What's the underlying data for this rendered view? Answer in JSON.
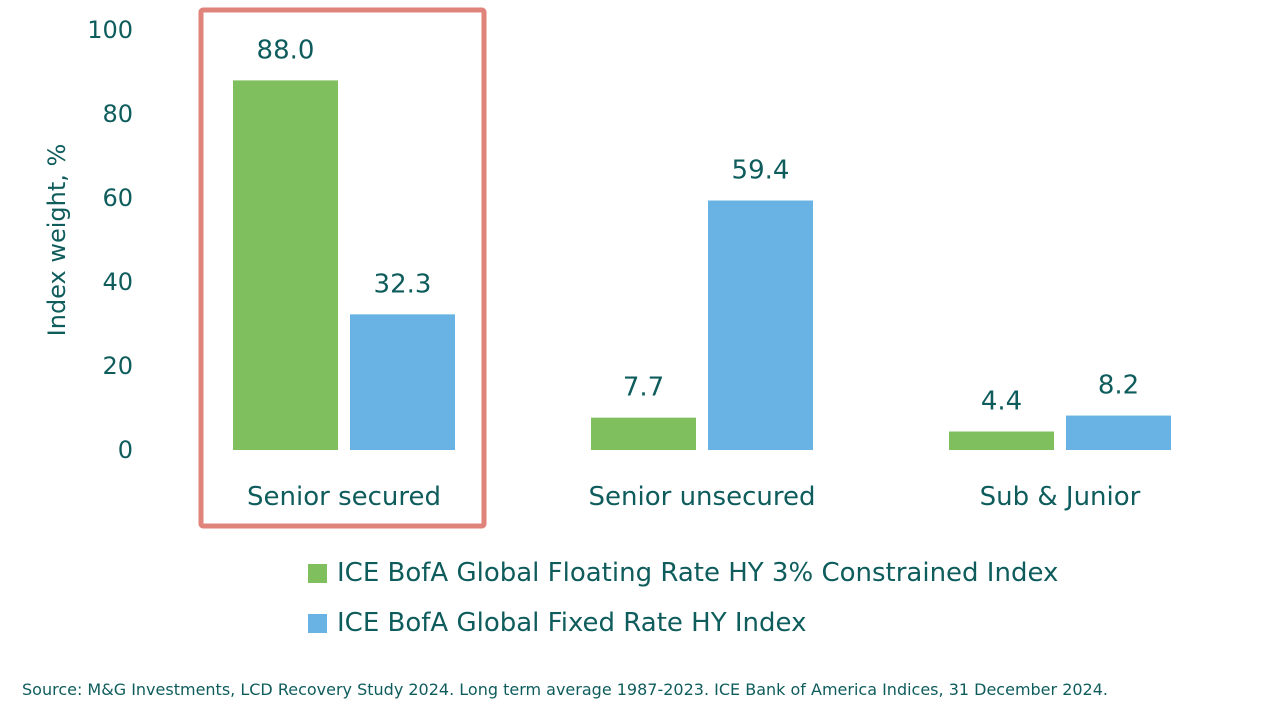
{
  "chart_data": {
    "type": "bar",
    "categories": [
      "Senior secured",
      "Senior unsecured",
      "Sub & Junior"
    ],
    "series": [
      {
        "name": "ICE BofA Global Floating Rate HY 3% Constrained Index",
        "values": [
          88.0,
          7.7,
          4.4
        ],
        "color": "#7fbf5e"
      },
      {
        "name": "ICE BofA Global Fixed Rate HY Index",
        "values": [
          32.3,
          59.4,
          8.2
        ],
        "color": "#68b3e3"
      }
    ],
    "data_labels": [
      [
        "88.0",
        "7.7",
        "4.4"
      ],
      [
        "32.3",
        "59.4",
        "8.2"
      ]
    ],
    "ylabel": "Index weight, %",
    "ylim": [
      0,
      100
    ],
    "yticks": [
      0,
      20,
      40,
      60,
      80,
      100
    ],
    "grid": false,
    "legend_placement": "bottom",
    "highlight": {
      "category": "Senior secured",
      "color": "#e0837a"
    }
  },
  "source_note": "Source: M&G Investments, LCD Recovery Study 2024. Long term average 1987-2023. ICE Bank of America Indices, 31 December 2024."
}
